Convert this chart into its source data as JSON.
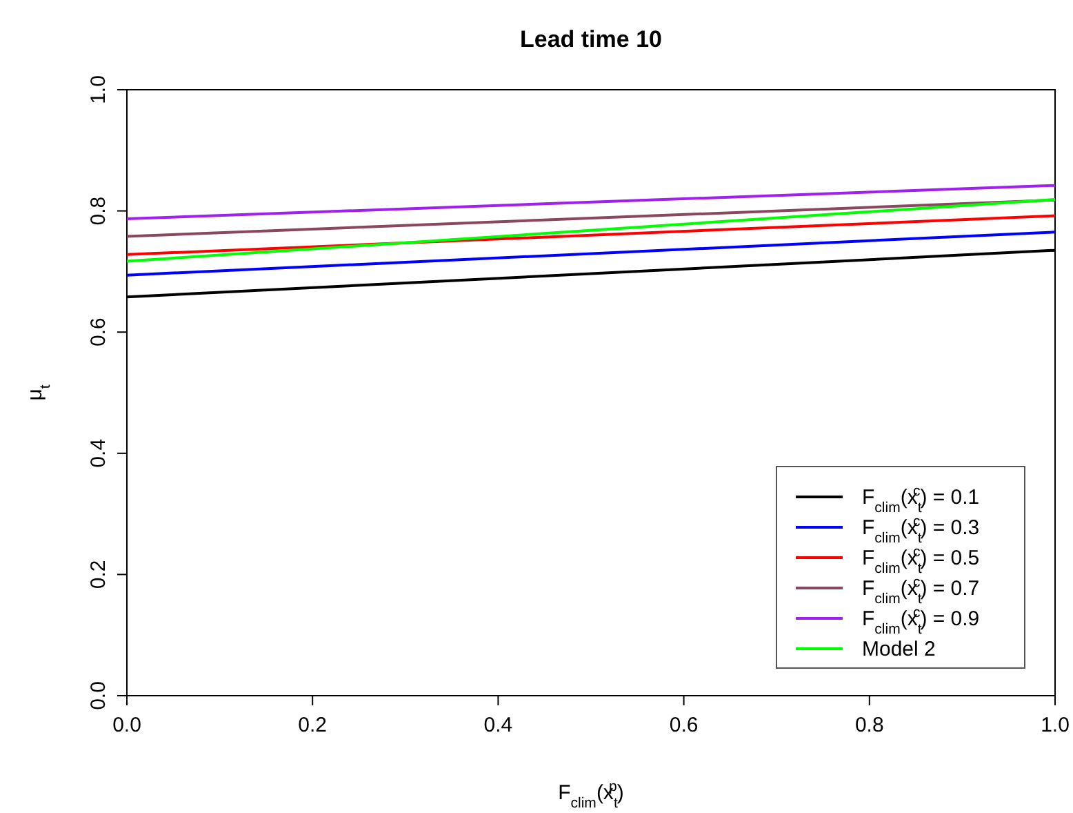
{
  "chart_data": {
    "type": "line",
    "title": "Lead time 10",
    "xlabel": "F$_{clim}$(x$_{t}$$^{p}$)",
    "ylabel": "μ$_{t}$",
    "x": [
      0,
      1
    ],
    "xlim": [
      0,
      1
    ],
    "ylim": [
      0,
      1
    ],
    "xticks": [
      {
        "value": 0,
        "label": "0.0"
      },
      0.2,
      0.4,
      0.6,
      0.8,
      {
        "value": 1,
        "label": "1.0"
      }
    ],
    "yticks": [
      {
        "value": 0,
        "label": "0.0"
      },
      0.2,
      0.4,
      0.6,
      0.8,
      {
        "value": 1,
        "label": "1.0"
      }
    ],
    "legend": "bottom right",
    "grid": false,
    "marker": "none",
    "line_style": "solid",
    "series": [
      {
        "name": "F$_{clim}$(x$_{t}$$^{c}$) = 0.1",
        "color": "#000000",
        "values": [
          0.658,
          0.735
        ]
      },
      {
        "name": "F$_{clim}$(x$_{t}$$^{c}$) = 0.3",
        "color": "#0000ff",
        "values": [
          0.694,
          0.765
        ]
      },
      {
        "name": "F$_{clim}$(x$_{t}$$^{c}$) = 0.5",
        "color": "#ff0000",
        "values": [
          0.728,
          0.792
        ]
      },
      {
        "name": "F$_{clim}$(x$_{t}$$^{c}$) = 0.7",
        "color": "#8b4760",
        "values": [
          0.758,
          0.818
        ]
      },
      {
        "name": "F$_{clim}$(x$_{t}$$^{c}$) = 0.9",
        "color": "#a020f0",
        "values": [
          0.787,
          0.842
        ]
      },
      {
        "name": "Model 2",
        "color": "#00ff00",
        "values": [
          0.717,
          0.819
        ]
      }
    ]
  }
}
